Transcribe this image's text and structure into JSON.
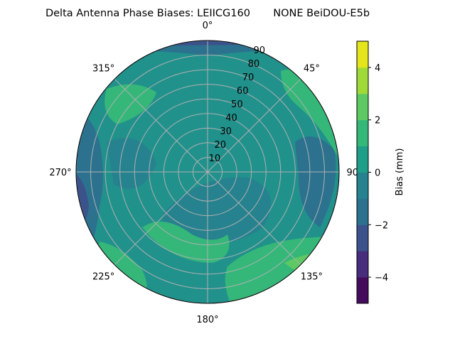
{
  "chart_data": {
    "type": "contour",
    "projection": "polar",
    "title": "Delta Antenna Phase Biases: LEIICG160       NONE BeiDOU-E5b",
    "angle_ticks": [
      {
        "deg": 0,
        "label": "0°"
      },
      {
        "deg": 45,
        "label": "45°"
      },
      {
        "deg": 90,
        "label": "90°"
      },
      {
        "deg": 135,
        "label": "135°"
      },
      {
        "deg": 180,
        "label": "180°"
      },
      {
        "deg": 225,
        "label": "225°"
      },
      {
        "deg": 270,
        "label": "270°"
      },
      {
        "deg": 315,
        "label": "315°"
      }
    ],
    "radial_ticks": [
      10,
      20,
      30,
      40,
      50,
      60,
      70,
      80,
      90
    ],
    "radial_range": [
      0,
      90
    ],
    "angle_direction": "clockwise",
    "angle_zero": "north",
    "levels": [
      -5,
      -4,
      -3,
      -2,
      -1,
      0,
      1,
      2,
      3,
      4,
      5
    ],
    "level_colors": [
      "#450c5c",
      "#472d7b",
      "#3b528b",
      "#2c728e",
      "#26828e",
      "#1f9e89",
      "#35b779",
      "#5ec962",
      "#a0da39",
      "#e4e51a"
    ],
    "colorbar": {
      "label": "Bias (mm)",
      "ticks": [
        -4,
        -2,
        0,
        2,
        4
      ]
    },
    "grid": true
  }
}
